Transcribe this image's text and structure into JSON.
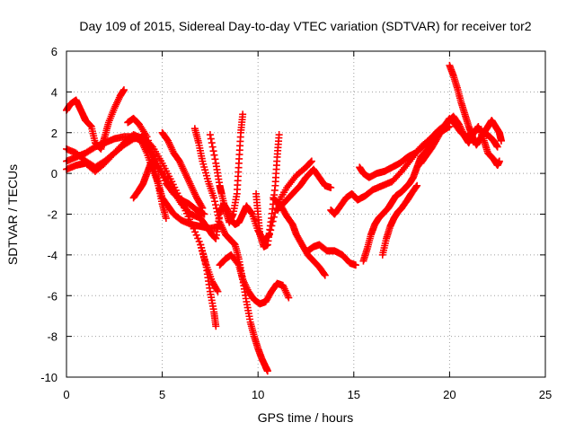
{
  "chart_data": {
    "type": "scatter",
    "title": "Day 109 of 2015, Sidereal Day-to-day VTEC variation (SDTVAR) for receiver tor2",
    "xlabel": "GPS time / hours",
    "ylabel": "SDTVAR / TECUs",
    "xlim": [
      0,
      25
    ],
    "ylim": [
      -10,
      6
    ],
    "xticks": [
      "0",
      "5",
      "10",
      "15",
      "20",
      "25"
    ],
    "yticks": [
      "-10",
      "-8",
      "-6",
      "-4",
      "-2",
      "0",
      "2",
      "4",
      "6"
    ],
    "grid": true,
    "marker": "+",
    "color": "#ff0000",
    "series": [
      {
        "points": [
          [
            0,
            3.1
          ],
          [
            0.2,
            3.4
          ],
          [
            0.5,
            3.6
          ],
          [
            0.7,
            3.2
          ],
          [
            0.9,
            2.8
          ],
          [
            1.0,
            2.6
          ],
          [
            1.3,
            2.3
          ],
          [
            1.5,
            1.5
          ],
          [
            1.8,
            1.2
          ],
          [
            2.0,
            1.8
          ],
          [
            2.2,
            2.5
          ],
          [
            2.5,
            3.2
          ],
          [
            2.8,
            3.8
          ],
          [
            3.0,
            4.1
          ]
        ]
      },
      {
        "points": [
          [
            0,
            0.6
          ],
          [
            0.5,
            0.8
          ],
          [
            1.0,
            1.0
          ],
          [
            1.5,
            1.3
          ],
          [
            2.0,
            1.5
          ],
          [
            2.5,
            1.7
          ],
          [
            3.0,
            1.8
          ],
          [
            3.5,
            1.8
          ],
          [
            3.9,
            1.6
          ],
          [
            4.2,
            1.0
          ],
          [
            4.5,
            0.2
          ],
          [
            4.8,
            -0.5
          ],
          [
            5.0,
            -1.2
          ],
          [
            5.3,
            -1.6
          ],
          [
            5.6,
            -2.0
          ],
          [
            6.0,
            -2.3
          ],
          [
            6.5,
            -2.5
          ],
          [
            7.0,
            -2.6
          ],
          [
            7.5,
            -2.7
          ],
          [
            8.0,
            -2.6
          ]
        ]
      },
      {
        "points": [
          [
            0,
            1.2
          ],
          [
            0.5,
            1.0
          ],
          [
            1.0,
            0.6
          ],
          [
            1.5,
            0.3
          ],
          [
            2.0,
            0.6
          ],
          [
            2.5,
            1.0
          ],
          [
            3.0,
            1.4
          ],
          [
            3.5,
            1.7
          ],
          [
            4.0,
            1.8
          ],
          [
            4.5,
            1.3
          ],
          [
            5.0,
            0.5
          ],
          [
            5.5,
            -0.4
          ],
          [
            6.0,
            -1.4
          ],
          [
            6.5,
            -2.4
          ],
          [
            7.0,
            -3.5
          ],
          [
            7.3,
            -4.6
          ],
          [
            7.5,
            -5.8
          ],
          [
            7.7,
            -6.8
          ],
          [
            7.8,
            -7.5
          ]
        ]
      },
      {
        "points": [
          [
            0,
            0.2
          ],
          [
            0.5,
            0.4
          ],
          [
            1.0,
            0.5
          ],
          [
            1.5,
            0.1
          ],
          [
            2.0,
            0.5
          ],
          [
            2.5,
            1.0
          ],
          [
            3.0,
            1.5
          ],
          [
            3.5,
            1.9
          ],
          [
            4.0,
            1.7
          ],
          [
            4.4,
            1.0
          ],
          [
            4.8,
            0.3
          ],
          [
            5.2,
            -0.3
          ],
          [
            5.6,
            -0.9
          ],
          [
            6.0,
            -1.5
          ],
          [
            6.5,
            -2.0
          ],
          [
            7.0,
            -2.2
          ],
          [
            7.3,
            -2.6
          ],
          [
            7.6,
            -3.0
          ],
          [
            7.8,
            -3.2
          ],
          [
            8.0,
            -2.0
          ],
          [
            8.2,
            -1.5
          ],
          [
            8.4,
            -1.8
          ],
          [
            8.6,
            -2.3
          ],
          [
            8.8,
            -2.5
          ],
          [
            9.0,
            -2.4
          ],
          [
            9.2,
            -2.0
          ],
          [
            9.4,
            -1.6
          ],
          [
            9.7,
            -2.0
          ],
          [
            10.0,
            -2.8
          ],
          [
            10.3,
            -3.3
          ],
          [
            10.6,
            -3.0
          ],
          [
            11.0,
            -1.5
          ],
          [
            11.5,
            -0.7
          ],
          [
            12.0,
            -0.1
          ],
          [
            12.5,
            0.3
          ],
          [
            12.8,
            0.6
          ]
        ]
      },
      {
        "points": [
          [
            3.2,
            2.5
          ],
          [
            3.5,
            2.7
          ],
          [
            3.8,
            2.4
          ],
          [
            4.2,
            1.8
          ],
          [
            4.7,
            0.5
          ],
          [
            5.2,
            -0.5
          ],
          [
            5.6,
            -1.0
          ],
          [
            6.0,
            -1.3
          ],
          [
            6.4,
            -1.5
          ],
          [
            6.8,
            -1.8
          ],
          [
            7.2,
            -2.0
          ]
        ]
      },
      {
        "points": [
          [
            3.5,
            -1.2
          ],
          [
            3.8,
            -0.8
          ],
          [
            4.0,
            -0.5
          ],
          [
            4.2,
            0.0
          ],
          [
            4.4,
            0.5
          ],
          [
            4.6,
            0.2
          ],
          [
            4.8,
            -0.6
          ],
          [
            5.0,
            -1.5
          ],
          [
            5.2,
            -2.2
          ]
        ]
      },
      {
        "points": [
          [
            5.0,
            2.0
          ],
          [
            5.3,
            1.6
          ],
          [
            5.6,
            1.0
          ],
          [
            5.9,
            0.6
          ],
          [
            6.2,
            0.0
          ],
          [
            6.5,
            -0.6
          ],
          [
            6.8,
            -1.2
          ],
          [
            7.1,
            -1.7
          ]
        ]
      },
      {
        "points": [
          [
            7.0,
            -3.5
          ],
          [
            7.3,
            -4.5
          ],
          [
            7.6,
            -5.3
          ],
          [
            7.9,
            -5.8
          ]
        ]
      },
      {
        "points": [
          [
            6.7,
            2.2
          ],
          [
            6.9,
            1.5
          ],
          [
            7.1,
            0.6
          ],
          [
            7.4,
            -0.4
          ],
          [
            7.7,
            -1.2
          ],
          [
            8.0,
            -2.4
          ],
          [
            8.3,
            -3.0
          ],
          [
            8.6,
            -3.3
          ],
          [
            8.8,
            -3.5
          ],
          [
            9.0,
            -4.2
          ],
          [
            9.2,
            -5.2
          ],
          [
            9.4,
            -6.3
          ],
          [
            9.6,
            -7.3
          ],
          [
            9.8,
            -8.0
          ],
          [
            10.0,
            -8.6
          ],
          [
            10.2,
            -9.1
          ],
          [
            10.4,
            -9.5
          ],
          [
            10.5,
            -9.7
          ]
        ]
      },
      {
        "points": [
          [
            7.5,
            1.9
          ],
          [
            7.8,
            0.5
          ],
          [
            8.0,
            -0.6
          ],
          [
            8.1,
            -1.0
          ],
          [
            8.3,
            -1.8
          ],
          [
            8.5,
            -2.4
          ],
          [
            8.7,
            -2.0
          ],
          [
            8.9,
            -1.0
          ],
          [
            9.0,
            0.5
          ],
          [
            9.1,
            2.0
          ],
          [
            9.2,
            2.9
          ]
        ]
      },
      {
        "points": [
          [
            8.0,
            -4.5
          ],
          [
            8.3,
            -4.2
          ],
          [
            8.6,
            -4.0
          ],
          [
            9.0,
            -4.5
          ],
          [
            9.2,
            -5.2
          ],
          [
            9.5,
            -5.8
          ],
          [
            9.8,
            -6.2
          ],
          [
            10.1,
            -6.4
          ],
          [
            10.4,
            -6.3
          ],
          [
            10.7,
            -5.8
          ],
          [
            11.0,
            -5.4
          ],
          [
            11.3,
            -5.5
          ],
          [
            11.6,
            -6.1
          ]
        ]
      },
      {
        "points": [
          [
            9.9,
            -1.0
          ],
          [
            10.0,
            -2.0
          ],
          [
            10.1,
            -3.0
          ],
          [
            10.3,
            -3.6
          ],
          [
            10.5,
            -3.5
          ],
          [
            10.7,
            -2.2
          ],
          [
            10.9,
            -0.6
          ],
          [
            11.0,
            0.8
          ],
          [
            11.1,
            1.9
          ]
        ]
      },
      {
        "points": [
          [
            10.8,
            -1.2
          ],
          [
            11.2,
            -1.6
          ],
          [
            11.5,
            -2.1
          ],
          [
            11.8,
            -2.5
          ],
          [
            12.0,
            -3.0
          ],
          [
            12.3,
            -3.5
          ],
          [
            12.6,
            -4.0
          ],
          [
            12.9,
            -4.3
          ],
          [
            13.2,
            -4.6
          ],
          [
            13.5,
            -5.0
          ]
        ]
      },
      {
        "points": [
          [
            11.0,
            -1.8
          ],
          [
            11.4,
            -1.4
          ],
          [
            11.8,
            -1.0
          ],
          [
            12.2,
            -0.6
          ],
          [
            12.5,
            -0.2
          ],
          [
            12.9,
            0.2
          ],
          [
            13.2,
            -0.2
          ],
          [
            13.5,
            -0.6
          ],
          [
            13.8,
            -0.7
          ]
        ]
      },
      {
        "points": [
          [
            12.6,
            -3.8
          ],
          [
            12.9,
            -3.6
          ],
          [
            13.2,
            -3.5
          ],
          [
            13.6,
            -3.8
          ],
          [
            14.0,
            -3.8
          ],
          [
            14.4,
            -4.0
          ],
          [
            14.8,
            -4.4
          ],
          [
            15.1,
            -4.5
          ]
        ]
      },
      {
        "points": [
          [
            13.8,
            -1.8
          ],
          [
            14.0,
            -2.0
          ],
          [
            14.3,
            -1.6
          ],
          [
            14.6,
            -1.2
          ],
          [
            14.9,
            -1.0
          ],
          [
            15.2,
            -1.3
          ],
          [
            15.6,
            -1.1
          ],
          [
            16.0,
            -0.8
          ],
          [
            16.5,
            -0.6
          ],
          [
            17.0,
            -0.4
          ],
          [
            17.5,
            0.1
          ],
          [
            18.0,
            0.7
          ],
          [
            18.5,
            1.3
          ],
          [
            19.0,
            1.7
          ],
          [
            19.5,
            2.0
          ],
          [
            20.0,
            2.3
          ]
        ]
      },
      {
        "points": [
          [
            15.3,
            0.3
          ],
          [
            15.5,
            0.0
          ],
          [
            15.8,
            -0.2
          ],
          [
            16.2,
            0.0
          ],
          [
            16.6,
            0.1
          ],
          [
            17.0,
            0.3
          ],
          [
            17.4,
            0.5
          ],
          [
            17.8,
            0.8
          ],
          [
            18.2,
            1.0
          ],
          [
            18.6,
            1.3
          ],
          [
            19.0,
            1.7
          ],
          [
            19.4,
            2.1
          ],
          [
            19.8,
            2.4
          ]
        ]
      },
      {
        "points": [
          [
            15.5,
            -4.3
          ],
          [
            15.7,
            -3.7
          ],
          [
            15.9,
            -3.0
          ],
          [
            16.1,
            -2.5
          ],
          [
            16.3,
            -2.2
          ],
          [
            16.5,
            -2.0
          ],
          [
            16.8,
            -1.7
          ],
          [
            17.0,
            -1.4
          ],
          [
            17.2,
            -1.1
          ],
          [
            17.5,
            -0.9
          ],
          [
            17.7,
            -0.7
          ],
          [
            17.9,
            -0.5
          ],
          [
            18.1,
            -0.2
          ],
          [
            18.3,
            0.3
          ],
          [
            18.5,
            0.8
          ],
          [
            18.7,
            1.0
          ],
          [
            18.9,
            1.2
          ],
          [
            19.1,
            1.5
          ],
          [
            19.3,
            1.9
          ],
          [
            19.6,
            2.2
          ],
          [
            19.9,
            2.5
          ],
          [
            20.2,
            2.8
          ],
          [
            20.5,
            2.4
          ],
          [
            20.8,
            1.8
          ],
          [
            21.0,
            1.5
          ],
          [
            21.2,
            1.9
          ],
          [
            21.5,
            2.3
          ],
          [
            21.8,
            1.6
          ],
          [
            22.0,
            1.0
          ],
          [
            22.3,
            0.7
          ],
          [
            22.5,
            0.4
          ],
          [
            22.6,
            0.6
          ]
        ]
      },
      {
        "points": [
          [
            16.5,
            -4.0
          ],
          [
            16.7,
            -3.2
          ],
          [
            16.9,
            -2.6
          ],
          [
            17.1,
            -2.2
          ],
          [
            17.3,
            -1.9
          ],
          [
            17.5,
            -1.7
          ],
          [
            17.8,
            -1.3
          ],
          [
            18.0,
            -1.0
          ],
          [
            18.3,
            -0.6
          ]
        ]
      },
      {
        "points": [
          [
            18.5,
            0.5
          ],
          [
            18.8,
            0.9
          ],
          [
            19.1,
            1.3
          ],
          [
            19.4,
            1.8
          ],
          [
            19.7,
            2.3
          ],
          [
            20.0,
            2.7
          ],
          [
            20.3,
            2.4
          ],
          [
            20.6,
            2.0
          ],
          [
            20.9,
            1.8
          ],
          [
            21.2,
            2.0
          ],
          [
            21.5,
            2.2
          ],
          [
            21.8,
            2.0
          ],
          [
            22.1,
            1.8
          ],
          [
            22.3,
            1.6
          ],
          [
            22.5,
            1.3
          ]
        ]
      },
      {
        "points": [
          [
            20.0,
            5.3
          ],
          [
            20.2,
            4.8
          ],
          [
            20.4,
            4.2
          ],
          [
            20.6,
            3.5
          ],
          [
            20.8,
            2.9
          ],
          [
            21.0,
            2.3
          ],
          [
            21.2,
            1.8
          ],
          [
            21.4,
            1.4
          ],
          [
            21.6,
            1.7
          ],
          [
            21.8,
            2.0
          ],
          [
            22.0,
            2.3
          ],
          [
            22.2,
            2.6
          ],
          [
            22.4,
            2.3
          ],
          [
            22.6,
            2.0
          ],
          [
            22.7,
            1.6
          ]
        ]
      }
    ]
  }
}
